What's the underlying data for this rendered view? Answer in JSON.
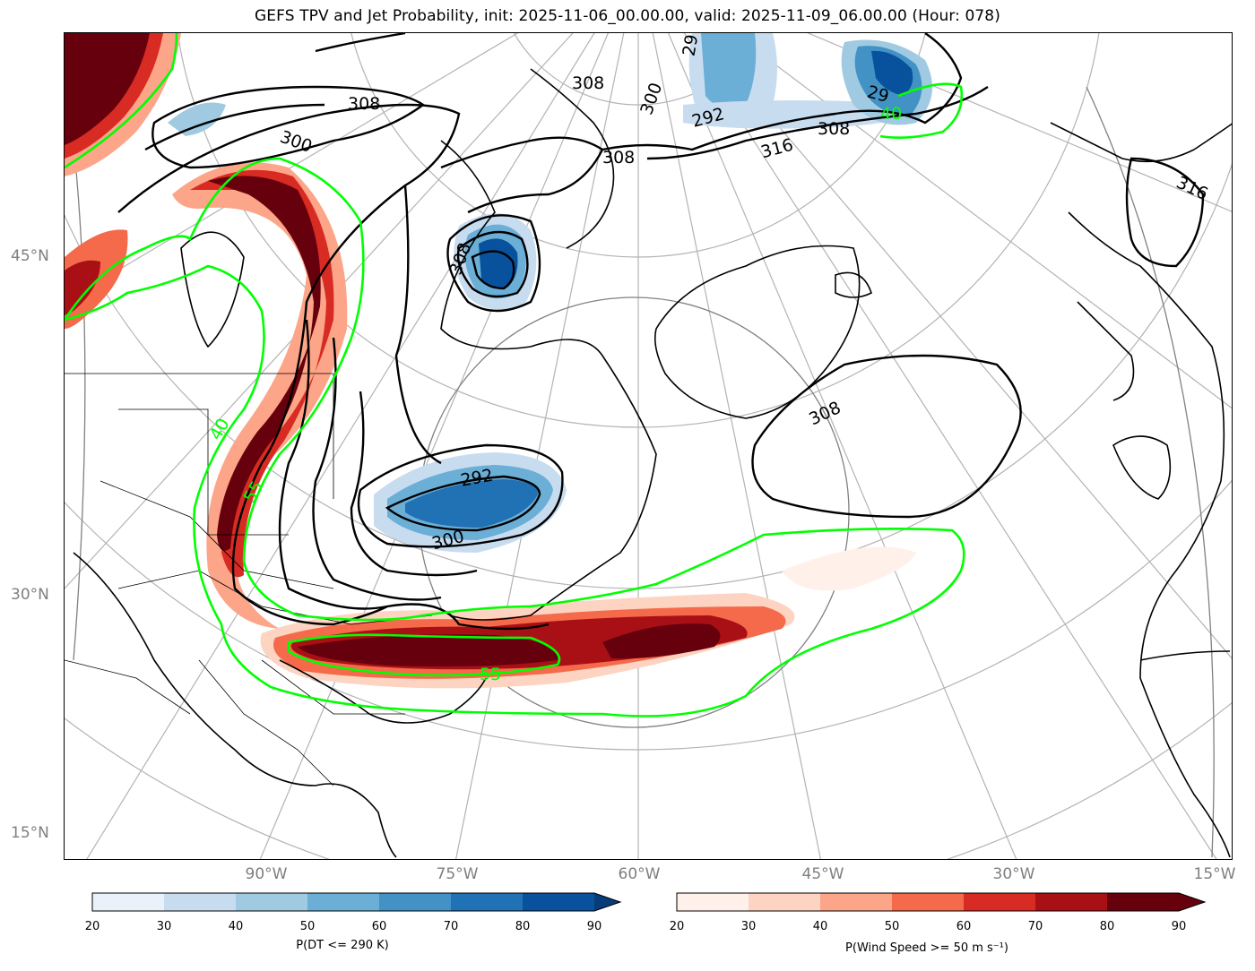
{
  "title": "GEFS TPV and Jet Probability, init: 2025-11-06_00.00.00, valid: 2025-11-09_06.00.00 (Hour: 078)",
  "lat_labels": [
    "45°N",
    "30°N",
    "15°N"
  ],
  "lon_labels": [
    "90°W",
    "75°W",
    "60°W",
    "45°W",
    "30°W",
    "15°W"
  ],
  "contour_labels": {
    "black": [
      "308",
      "300",
      "308",
      "300",
      "29",
      "308",
      "292",
      "316",
      "308",
      "29",
      "316",
      "308",
      "292",
      "300",
      "308"
    ],
    "green": [
      "40",
      "55",
      "55",
      "40"
    ]
  },
  "colorbar_left": {
    "label": "P(DT <= 290 K)",
    "ticks": [
      "20",
      "30",
      "40",
      "50",
      "60",
      "70",
      "80",
      "90"
    ],
    "colors": [
      "#e9f2fb",
      "#c8dcf0",
      "#9fcae1",
      "#6baed6",
      "#4292c6",
      "#2171b5",
      "#08519c",
      "#083b7a"
    ]
  },
  "colorbar_right": {
    "label": "P(Wind Speed >= 50 m s⁻¹)",
    "ticks": [
      "20",
      "30",
      "40",
      "50",
      "60",
      "70",
      "80",
      "90"
    ],
    "colors": [
      "#fff1ea",
      "#fdd3c1",
      "#fca588",
      "#f46a4a",
      "#d82b24",
      "#a81016",
      "#67000d"
    ]
  }
}
